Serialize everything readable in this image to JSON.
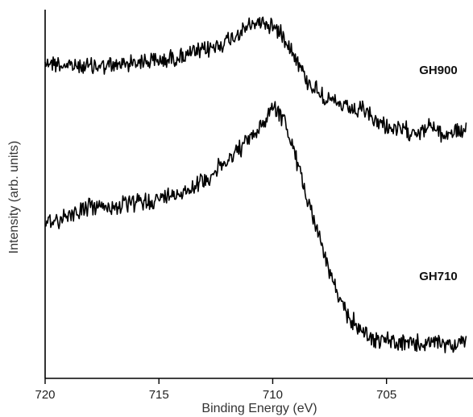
{
  "chart_data": {
    "type": "line",
    "xlabel": "Binding Energy (eV)",
    "ylabel": "Intensity (arb. units)",
    "xlim": [
      720,
      701.2
    ],
    "x_reversed": true,
    "ylim": [
      0,
      1
    ],
    "y_ticks_shown": false,
    "x_ticks": [
      {
        "value": 720,
        "label": "720"
      },
      {
        "value": 715,
        "label": "715"
      },
      {
        "value": 710,
        "label": "710"
      },
      {
        "value": 705,
        "label": "705"
      }
    ],
    "grid": false,
    "legend": "none",
    "series": [
      {
        "name": "GH900",
        "color": "#000000",
        "x": [
          720,
          719,
          718,
          717,
          716,
          715,
          714,
          713,
          712,
          711,
          710.5,
          710,
          709.5,
          709,
          708.5,
          708,
          707.5,
          707,
          706.5,
          706,
          705.5,
          705,
          704.5,
          704,
          703.5,
          703,
          702.5,
          702,
          701.5
        ],
        "y": [
          0.86,
          0.85,
          0.85,
          0.85,
          0.86,
          0.86,
          0.87,
          0.88,
          0.9,
          0.93,
          0.94,
          0.93,
          0.91,
          0.87,
          0.82,
          0.8,
          0.78,
          0.77,
          0.76,
          0.76,
          0.74,
          0.73,
          0.72,
          0.72,
          0.72,
          0.73,
          0.71,
          0.72,
          0.72
        ]
      },
      {
        "name": "GH710",
        "color": "#000000",
        "x": [
          720,
          719,
          718,
          717,
          716,
          715,
          714,
          713,
          712,
          711,
          710.5,
          710,
          709.5,
          709,
          708.5,
          708,
          707.5,
          707,
          706.5,
          706,
          705.5,
          705,
          704.5,
          704,
          703.5,
          703,
          702.5,
          702,
          701.5
        ],
        "y": [
          0.37,
          0.4,
          0.42,
          0.42,
          0.43,
          0.44,
          0.46,
          0.49,
          0.54,
          0.6,
          0.63,
          0.69,
          0.65,
          0.55,
          0.45,
          0.35,
          0.25,
          0.16,
          0.12,
          0.09,
          0.07,
          0.07,
          0.06,
          0.06,
          0.06,
          0.06,
          0.06,
          0.06,
          0.06
        ]
      }
    ]
  }
}
